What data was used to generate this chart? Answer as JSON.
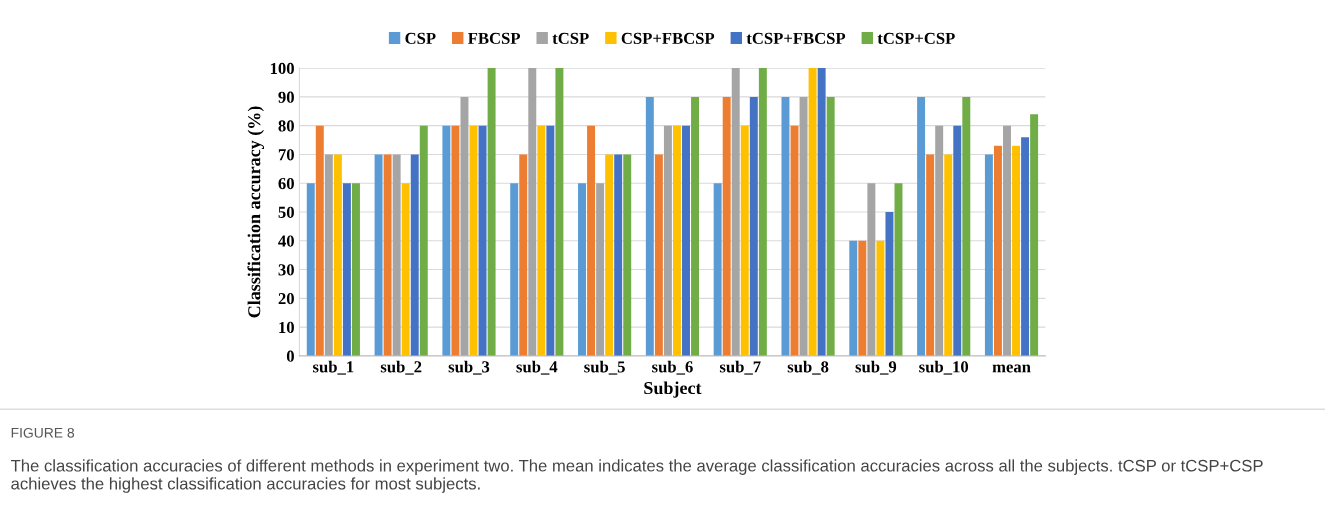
{
  "chart_data": {
    "type": "bar",
    "xlabel": "Subject",
    "ylabel": "Classification accuracy (%)",
    "categories": [
      "sub_1",
      "sub_2",
      "sub_3",
      "sub_4",
      "sub_5",
      "sub_6",
      "sub_7",
      "sub_8",
      "sub_9",
      "sub_10",
      "mean"
    ],
    "series": [
      {
        "name": "CSP",
        "color": "#5b9bd5",
        "values": [
          60,
          70,
          80,
          60,
          60,
          90,
          60,
          90,
          40,
          90,
          70
        ]
      },
      {
        "name": "FBCSP",
        "color": "#ed7d31",
        "values": [
          80,
          70,
          80,
          70,
          80,
          70,
          90,
          80,
          40,
          70,
          73
        ]
      },
      {
        "name": "tCSP",
        "color": "#a5a5a5",
        "values": [
          70,
          70,
          90,
          100,
          60,
          80,
          100,
          90,
          60,
          80,
          80
        ]
      },
      {
        "name": "CSP+FBCSP",
        "color": "#ffc000",
        "values": [
          70,
          60,
          80,
          80,
          70,
          80,
          80,
          100,
          40,
          70,
          73
        ]
      },
      {
        "name": "tCSP+FBCSP",
        "color": "#4472c4",
        "values": [
          60,
          70,
          80,
          80,
          70,
          80,
          90,
          100,
          50,
          80,
          76
        ]
      },
      {
        "name": "tCSP+CSP",
        "color": "#70ad47",
        "values": [
          60,
          80,
          100,
          100,
          70,
          90,
          100,
          90,
          60,
          90,
          84
        ]
      }
    ],
    "ylim": [
      0,
      100
    ],
    "yticks": [
      0,
      10,
      20,
      30,
      40,
      50,
      60,
      70,
      80,
      90,
      100
    ],
    "grid": "y",
    "legend": "top",
    "annotations": [
      "FIGURE 8",
      "The classification accuracies of different methods in experiment two. The mean indicates the average classification accuracies across all the subjects. tCSP or tCSP+CSP achieves the highest classification accuracies for most subjects."
    ]
  }
}
